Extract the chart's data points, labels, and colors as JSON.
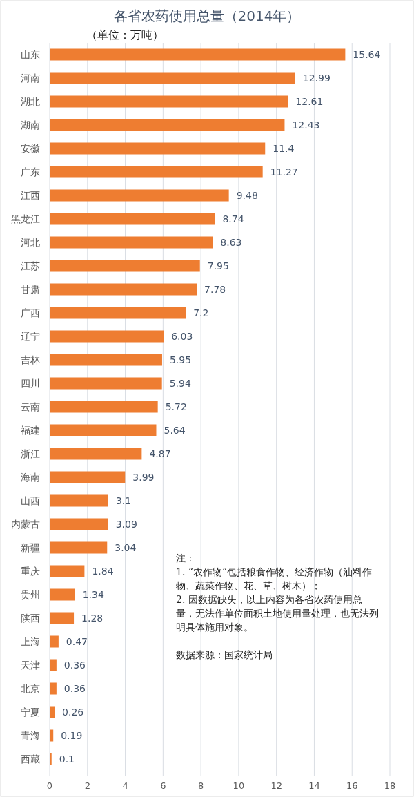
{
  "chart_data": {
    "type": "bar",
    "orientation": "horizontal",
    "title": "各省农药使用总量（2014年）",
    "subtitle": "（单位：万吨）",
    "categories": [
      "山东",
      "河南",
      "湖北",
      "湖南",
      "安徽",
      "广东",
      "江西",
      "黑龙江",
      "河北",
      "江苏",
      "甘肃",
      "广西",
      "辽宁",
      "吉林",
      "四川",
      "云南",
      "福建",
      "浙江",
      "海南",
      "山西",
      "内蒙古",
      "新疆",
      "重庆",
      "贵州",
      "陕西",
      "上海",
      "天津",
      "北京",
      "宁夏",
      "青海",
      "西藏"
    ],
    "values": [
      15.64,
      12.99,
      12.61,
      12.43,
      11.4,
      11.27,
      9.48,
      8.74,
      8.63,
      7.95,
      7.78,
      7.2,
      6.03,
      5.95,
      5.94,
      5.72,
      5.64,
      4.87,
      3.99,
      3.1,
      3.09,
      3.04,
      1.84,
      1.34,
      1.28,
      0.47,
      0.36,
      0.36,
      0.26,
      0.19,
      0.1
    ],
    "color": "#ee7d31",
    "data_labels": true,
    "grid": "x",
    "xlim": [
      0,
      18
    ],
    "xticks": [
      0,
      2,
      4,
      6,
      8,
      10,
      12,
      14,
      16,
      18
    ],
    "annotations": [
      "注：",
      "1. “农作物”包括粮食作物、经济作物（油料作物、蔬菜作物、花、草、树木）；",
      "2. 因数据缺失，以上内容为各省农药使用总量，无法作单位面积土地使用量处理，也无法列明具体施用对象。",
      "数据来源：国家统计局"
    ]
  }
}
